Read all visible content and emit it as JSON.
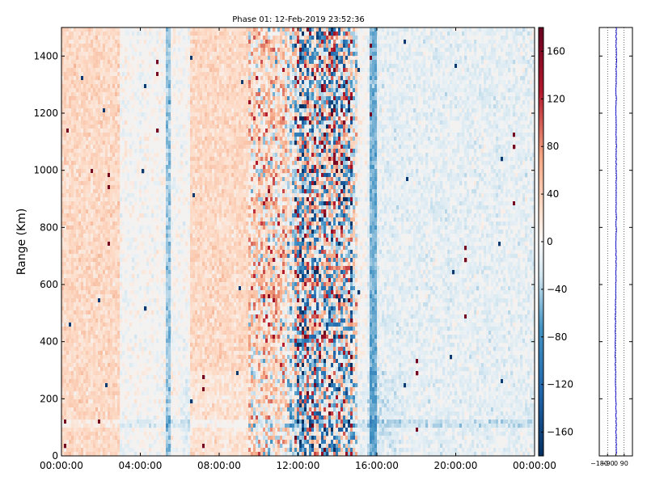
{
  "chart_data": [
    {
      "type": "heatmap",
      "title": "Phase 01: 12-Feb-2019 23:52:36",
      "xlabel": "",
      "ylabel": "Range (Km)",
      "xlim": [
        "00:00:00",
        "24:00:00"
      ],
      "ylim": [
        0,
        1500
      ],
      "grid": false,
      "x_tick_labels": [
        "00:00:00",
        "04:00:00",
        "08:00:00",
        "12:00:00",
        "16:00:00",
        "20:00:00",
        "00:00:00"
      ],
      "x_tick_hours": [
        0,
        4,
        8,
        12,
        16,
        20,
        24
      ],
      "y_ticks": [
        0,
        200,
        400,
        600,
        800,
        1000,
        1200,
        1400
      ],
      "colormap": "RdBu_r",
      "colorbar": {
        "range": [
          -180,
          180
        ],
        "ticks": [
          -160,
          -120,
          -80,
          -40,
          0,
          40,
          80,
          120,
          160
        ],
        "colors": {
          "low": "#053061",
          "mid": "#f7f7f7",
          "high": "#67001f"
        }
      },
      "features": {
        "noisy_band_hours": [
          9.5,
          15
        ],
        "strong_noise_hours": [
          11.8,
          14.8
        ],
        "positive_bias_hours": [
          [
            0,
            3
          ],
          [
            6.5,
            11.5
          ]
        ],
        "negative_bias_stripes_hours": [
          5.4,
          12.2,
          15.8
        ],
        "horizontal_band_km": [
          100,
          130
        ]
      }
    },
    {
      "type": "line",
      "title": "",
      "xlabel": "",
      "ylabel": "",
      "xlim": [
        -180,
        180
      ],
      "ylim": [
        0,
        1500
      ],
      "x_tick_labels": [
        "−180",
        "−90",
        "0",
        "90"
      ],
      "x_ticks": [
        -180,
        -90,
        0,
        90
      ],
      "grid": "vertical dotted",
      "line_color": "#0000cc",
      "profile": {
        "range_km": [
          0,
          100,
          200,
          300,
          400,
          500,
          600,
          700,
          800,
          900,
          1000,
          1100,
          1200,
          1300,
          1400,
          1500
        ],
        "phase_deg": [
          5,
          3,
          0,
          -4,
          -8,
          -4,
          0,
          2,
          3,
          4,
          5,
          4,
          2,
          3,
          5,
          4
        ]
      }
    }
  ]
}
